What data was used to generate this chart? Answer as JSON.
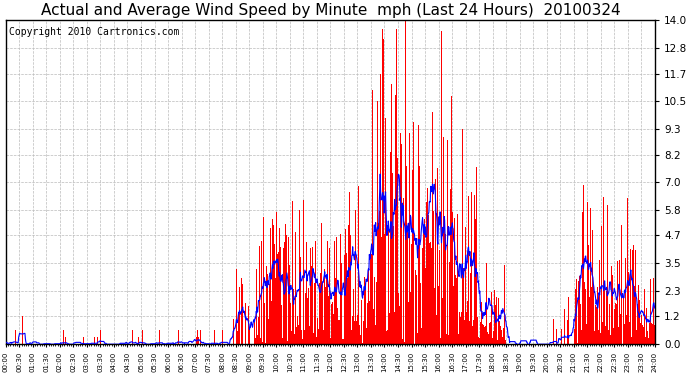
{
  "title": "Actual and Average Wind Speed by Minute  mph (Last 24 Hours)  20100324",
  "copyright": "Copyright 2010 Cartronics.com",
  "yticks": [
    0.0,
    1.2,
    2.3,
    3.5,
    4.7,
    5.8,
    7.0,
    8.2,
    9.3,
    10.5,
    11.7,
    12.8,
    14.0
  ],
  "ymax": 14.0,
  "ymin": 0.0,
  "bar_color": "#ff0000",
  "line_color": "#0000ff",
  "background_color": "#ffffff",
  "grid_color": "#bbbbbb",
  "title_fontsize": 11,
  "copyright_fontsize": 7
}
